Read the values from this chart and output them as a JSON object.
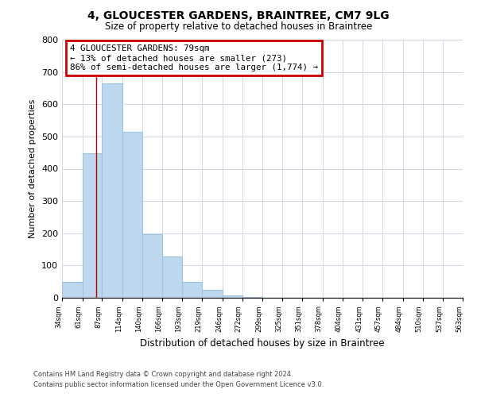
{
  "title": "4, GLOUCESTER GARDENS, BRAINTREE, CM7 9LG",
  "subtitle": "Size of property relative to detached houses in Braintree",
  "xlabel": "Distribution of detached houses by size in Braintree",
  "ylabel": "Number of detached properties",
  "bar_edges": [
    34,
    61,
    87,
    114,
    140,
    166,
    193,
    219,
    246,
    272,
    299,
    325,
    351,
    378,
    404,
    431,
    457,
    484,
    510,
    537,
    563
  ],
  "bar_heights": [
    50,
    447,
    665,
    515,
    197,
    127,
    49,
    25,
    8,
    3,
    0,
    0,
    0,
    0,
    0,
    0,
    0,
    0,
    0,
    0
  ],
  "bar_color": "#bdd7ee",
  "bar_edge_color": "#9dc3e6",
  "property_line_x": 79,
  "property_line_color": "#c00000",
  "ylim": [
    0,
    800
  ],
  "yticks": [
    0,
    100,
    200,
    300,
    400,
    500,
    600,
    700,
    800
  ],
  "annotation_line1": "4 GLOUCESTER GARDENS: 79sqm",
  "annotation_line2": "← 13% of detached houses are smaller (273)",
  "annotation_line3": "86% of semi-detached houses are larger (1,774) →",
  "annotation_box_color": "#cc0000",
  "footer_line1": "Contains HM Land Registry data © Crown copyright and database right 2024.",
  "footer_line2": "Contains public sector information licensed under the Open Government Licence v3.0.",
  "background_color": "#ffffff",
  "grid_color": "#d0d8e8"
}
